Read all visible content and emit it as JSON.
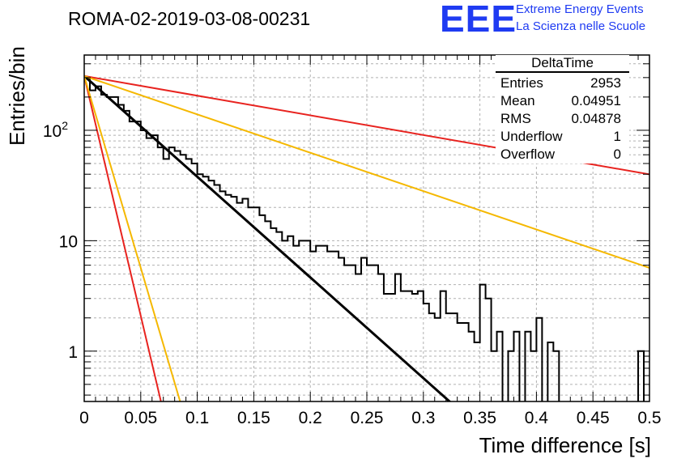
{
  "page": {
    "title": "ROMA-02-2019-03-08-00231",
    "logo_text": "EEE",
    "logo_line1": "Extreme Energy Events",
    "logo_line2": "La Scienza nelle Scuole",
    "colors": {
      "logo": "#1f3bf2",
      "red": "#e8231f",
      "orange": "#f5b800",
      "black": "#000000"
    }
  },
  "stats": {
    "title": "DeltaTime",
    "rows": [
      {
        "label": "Entries",
        "value": "2953"
      },
      {
        "label": "Mean",
        "value": "0.04951"
      },
      {
        "label": "RMS",
        "value": "0.04878"
      },
      {
        "label": "Underflow",
        "value": "1"
      },
      {
        "label": "Overflow",
        "value": "0"
      }
    ]
  },
  "chart_data": {
    "type": "histogram",
    "xlabel": "Time difference [s]",
    "ylabel": "Entries/bin",
    "xlim": [
      0,
      0.5
    ],
    "ylim": [
      0.35,
      480
    ],
    "y_scale": "log",
    "grid": true,
    "x_ticks": [
      "0",
      "0.05",
      "0.1",
      "0.15",
      "0.2",
      "0.25",
      "0.3",
      "0.35",
      "0.4",
      "0.45",
      "0.5"
    ],
    "y_ticks": [
      "1",
      "10",
      "10^2"
    ],
    "bin_width": 0.005,
    "histogram": [
      300,
      230,
      250,
      210,
      200,
      200,
      170,
      150,
      120,
      120,
      100,
      85,
      90,
      70,
      55,
      70,
      65,
      60,
      55,
      50,
      40,
      38,
      35,
      32,
      28,
      26,
      25,
      22,
      24,
      20,
      20,
      17,
      15,
      13,
      12,
      10,
      11,
      9,
      10,
      10,
      8,
      9,
      9,
      8,
      8,
      7,
      6,
      6,
      5,
      7,
      6,
      6,
      5,
      3.3,
      3.3,
      5,
      3.5,
      3.5,
      3.3,
      3.5,
      2.7,
      2.2,
      2,
      3.5,
      2.2,
      2.2,
      1.8,
      1.8,
      1.5,
      1.2,
      4,
      3,
      1,
      1.5,
      0,
      1,
      1.5,
      0,
      1.5,
      1,
      2,
      0,
      1.2,
      1,
      0,
      0,
      0,
      0,
      0,
      0,
      0,
      0,
      0,
      0,
      0,
      0,
      0,
      0,
      1,
      0
    ],
    "fit_lines": [
      {
        "color": "black",
        "y0": 310,
        "slope_per_s": -21.0,
        "x_end": 0.335
      },
      {
        "color": "red",
        "y0": 310,
        "slope_per_s": -4.1,
        "x_end": 0.5
      },
      {
        "color": "orange",
        "y0": 310,
        "slope_per_s": -8.0,
        "x_end": 0.5
      },
      {
        "color": "red",
        "y0": 310,
        "slope_per_s": -100.0,
        "x_end": 0.07
      },
      {
        "color": "orange",
        "y0": 310,
        "slope_per_s": -80.0,
        "x_end": 0.09
      }
    ]
  }
}
